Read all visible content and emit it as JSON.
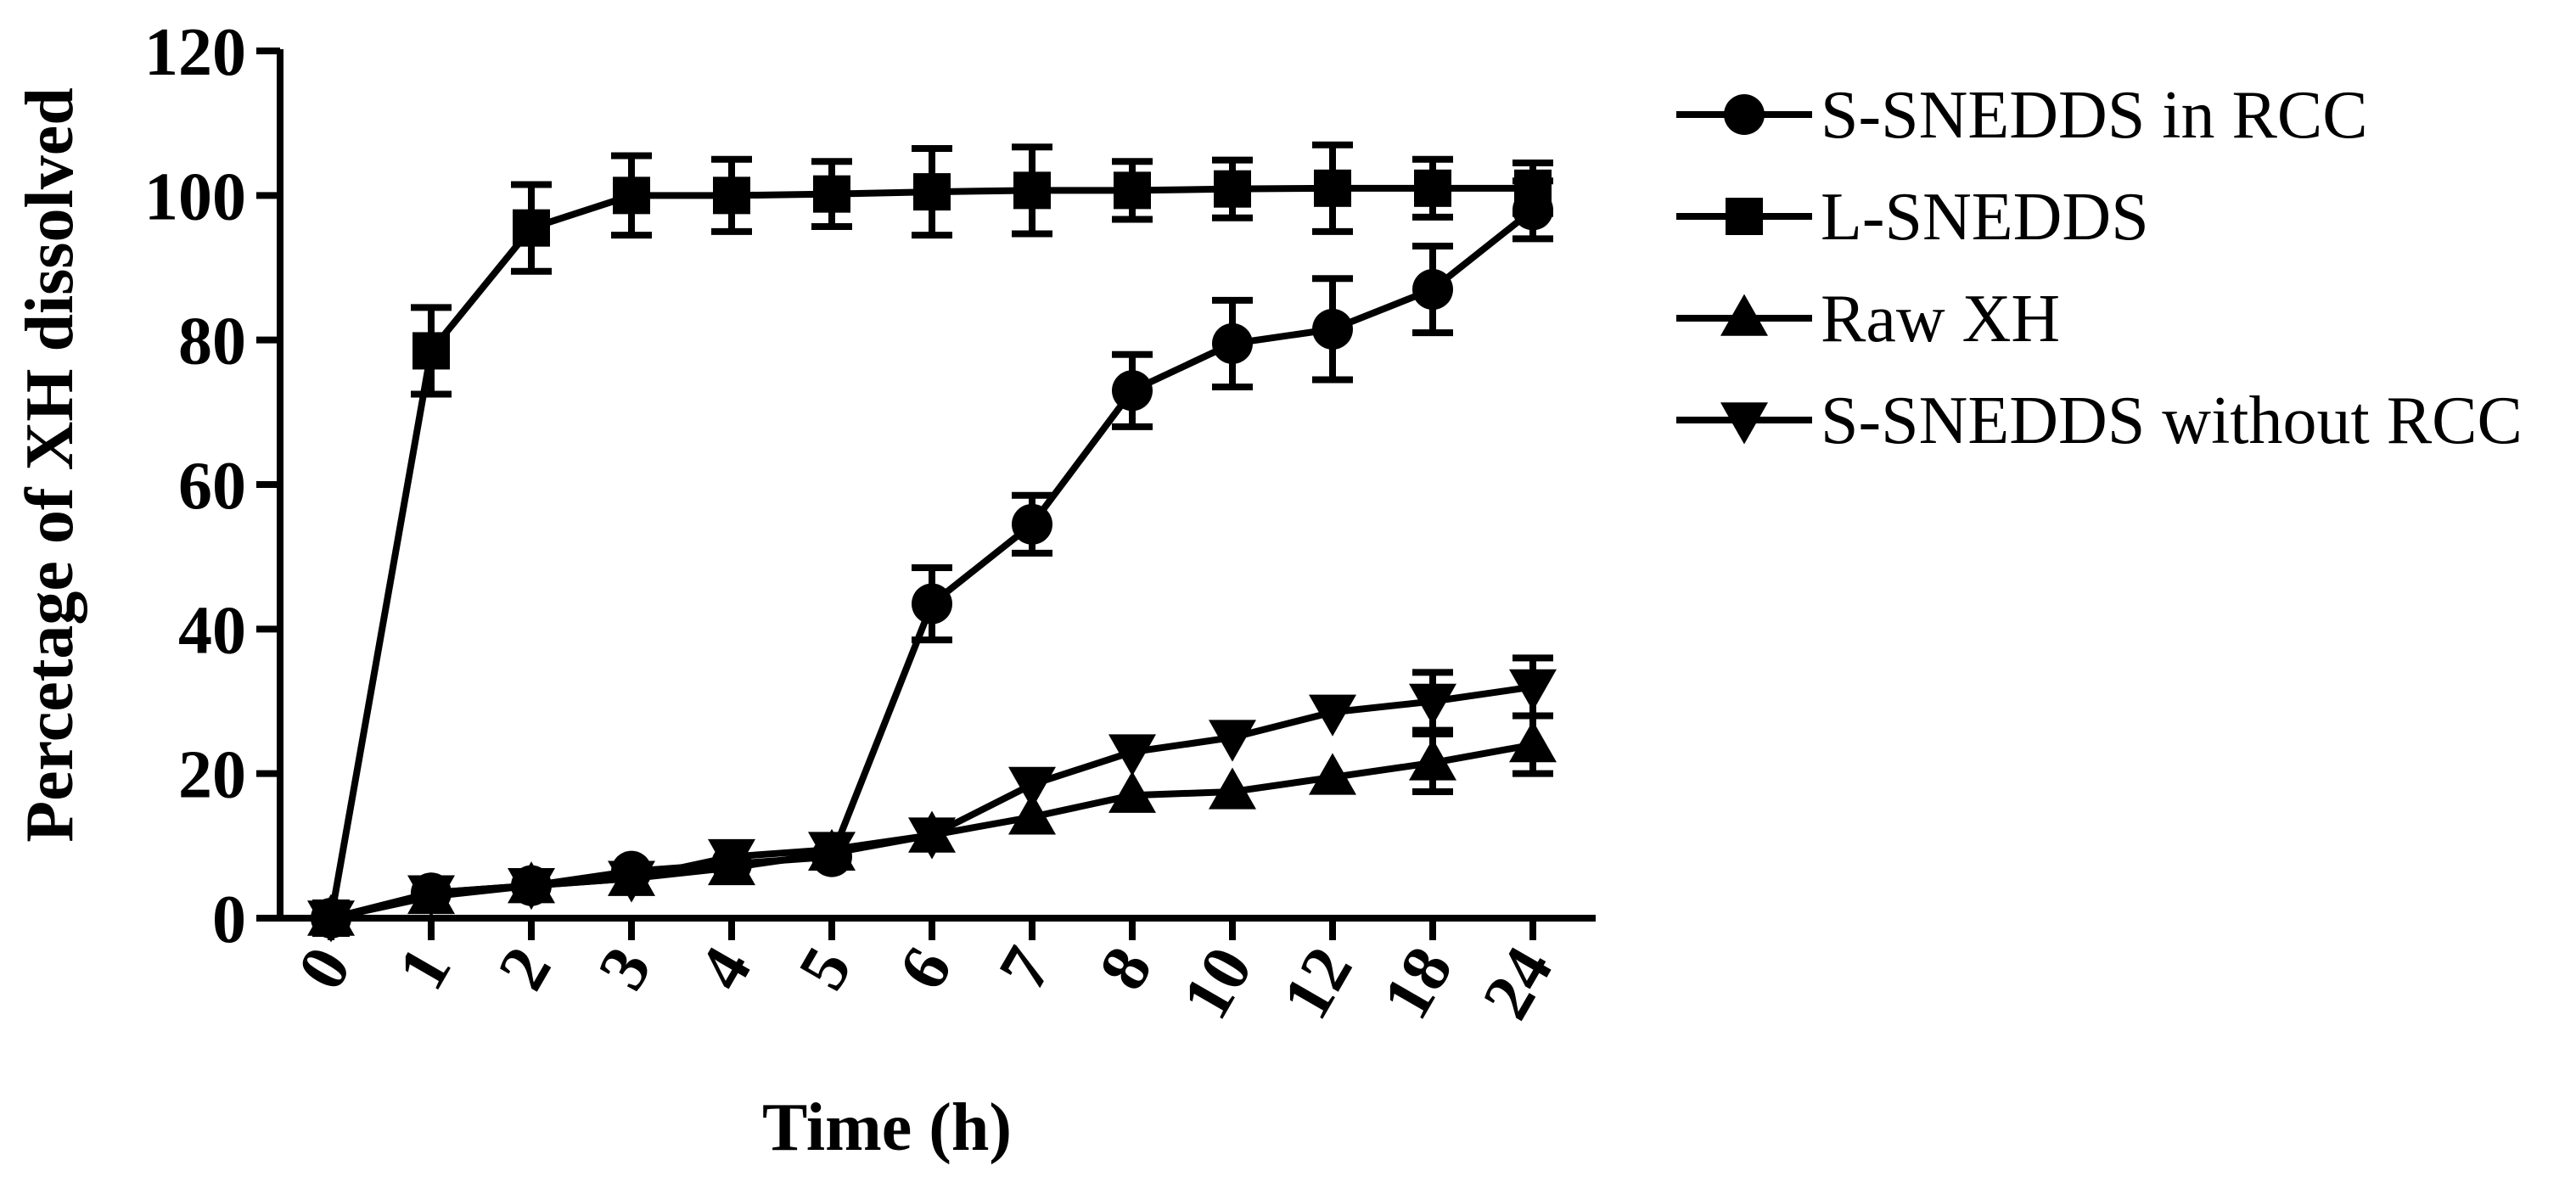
{
  "chart_data": {
    "type": "line",
    "title": "",
    "xlabel": "Time (h)",
    "ylabel": "Percetage of XH dissolved",
    "categories": [
      "0",
      "1",
      "2",
      "3",
      "4",
      "5",
      "6",
      "7",
      "8",
      "10",
      "12",
      "18",
      "24"
    ],
    "ylim": [
      0,
      120
    ],
    "yticks": [
      "0",
      "20",
      "40",
      "60",
      "80",
      "100",
      "120"
    ],
    "legend_position": "right",
    "series": [
      {
        "name": "S-SNEDDS in RCC",
        "marker": "circle",
        "values": [
          0,
          3.5,
          4.5,
          6.5,
          7.5,
          8.5,
          43.5,
          54.5,
          73,
          79.5,
          81.5,
          87,
          98
        ],
        "errors": [
          0,
          0,
          0,
          0,
          0,
          0,
          5,
          4,
          5,
          6,
          7,
          6,
          4
        ]
      },
      {
        "name": "L-SNEDDS",
        "marker": "square",
        "values": [
          0,
          78.5,
          95.5,
          100,
          100,
          100.2,
          100.5,
          100.7,
          100.7,
          100.9,
          101,
          101,
          101
        ],
        "errors": [
          0,
          6,
          6,
          5.5,
          5,
          4.5,
          6,
          6,
          4,
          4,
          6,
          4,
          3.5
        ]
      },
      {
        "name": "Raw XH",
        "marker": "triangle-up",
        "values": [
          0,
          3,
          4.5,
          5.5,
          7,
          9,
          11.5,
          14,
          17,
          17.5,
          19.5,
          21.5,
          24
        ],
        "errors": [
          0,
          0,
          0,
          0,
          0,
          0,
          0,
          0,
          0,
          0,
          0,
          4,
          4
        ]
      },
      {
        "name": "S-SNEDDS without RCC",
        "marker": "triangle-down",
        "values": [
          0,
          3.5,
          4.5,
          5.5,
          8.5,
          9.5,
          11.5,
          18.5,
          23,
          25,
          28.5,
          30,
          32
        ],
        "errors": [
          0,
          0,
          0,
          0,
          0,
          0,
          0,
          0,
          0,
          0,
          0,
          4,
          4
        ]
      }
    ]
  }
}
